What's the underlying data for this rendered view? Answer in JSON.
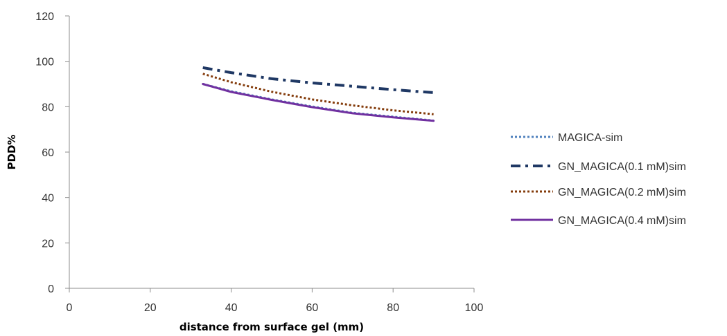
{
  "chart_data": {
    "type": "line",
    "title": "",
    "xlabel": "distance from surface gel (mm)",
    "ylabel": "PDD%",
    "xlim": [
      0,
      100
    ],
    "ylim": [
      0,
      120
    ],
    "x_ticks": [
      "0",
      "20",
      "40",
      "60",
      "80",
      "100"
    ],
    "y_ticks": [
      "0",
      "20",
      "40",
      "60",
      "80",
      "100",
      "120"
    ],
    "grid": false,
    "legend_position": "right",
    "x": [
      33,
      40,
      50,
      60,
      70,
      80,
      90
    ],
    "series": [
      {
        "name": "MAGICA-sim",
        "color": "#4f81bd",
        "dash": "dotted",
        "values": [
          90.0,
          86.8,
          83.2,
          80.1,
          77.3,
          75.6,
          73.9
        ]
      },
      {
        "name": "GN_MAGICA(0.1 mM)sim",
        "color": "#1f3864",
        "dash": "dash-dot",
        "values": [
          97.2,
          95.0,
          92.3,
          90.5,
          89.0,
          87.5,
          86.2
        ]
      },
      {
        "name": "GN_MAGICA(0.2 mM)sim",
        "color": "#843c0c",
        "dash": "dotted",
        "values": [
          94.5,
          90.8,
          86.6,
          83.2,
          80.6,
          78.4,
          76.7
        ]
      },
      {
        "name": "GN_MAGICA(0.4 mM)sim",
        "color": "#7030a0",
        "dash": "solid",
        "values": [
          90.0,
          86.5,
          83.0,
          79.8,
          77.1,
          75.3,
          73.8
        ]
      }
    ]
  }
}
